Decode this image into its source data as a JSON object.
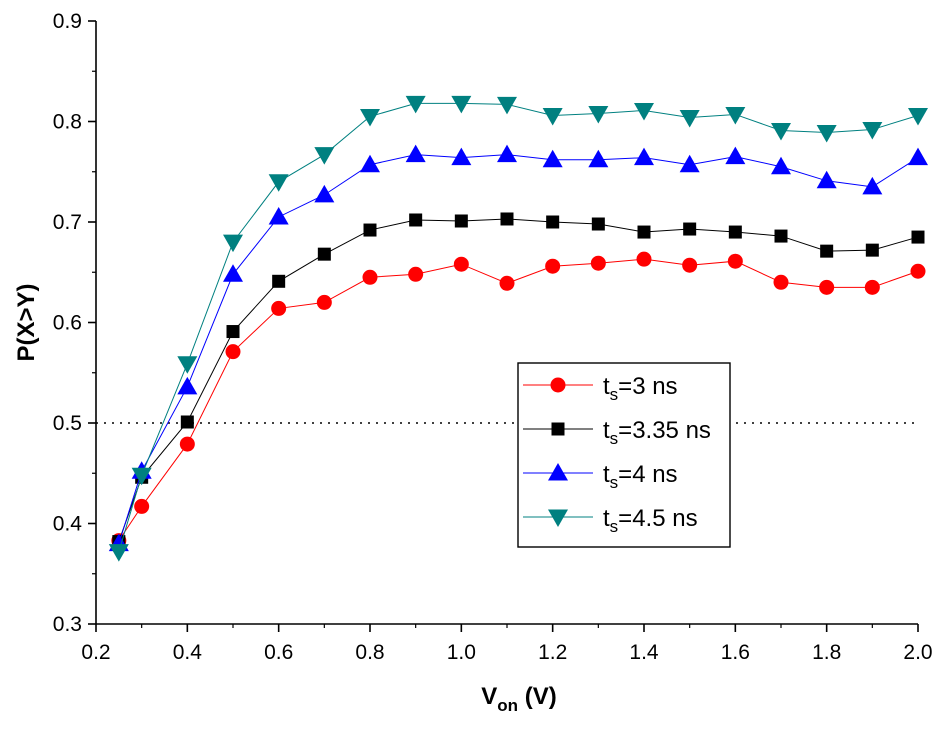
{
  "chart_data": {
    "type": "line",
    "title": "",
    "xlabel": {
      "main": "V",
      "sub": "on",
      "unit": " (V)"
    },
    "ylabel": "P(X>Y)",
    "xlim": [
      0.2,
      2.0
    ],
    "ylim": [
      0.3,
      0.9
    ],
    "xticks": [
      "0.2",
      "0.4",
      "0.6",
      "0.8",
      "1.0",
      "1.2",
      "1.4",
      "1.6",
      "1.8",
      "2.0"
    ],
    "yticks": [
      "0.3",
      "0.4",
      "0.5",
      "0.6",
      "0.7",
      "0.8",
      "0.9"
    ],
    "reference_line": {
      "y": 0.5,
      "style": "dotted",
      "color": "#000000"
    },
    "legend_position": "center-right",
    "x": [
      0.25,
      0.3,
      0.4,
      0.5,
      0.6,
      0.7,
      0.8,
      0.9,
      1.0,
      1.1,
      1.2,
      1.3,
      1.4,
      1.5,
      1.6,
      1.7,
      1.8,
      1.9,
      2.0
    ],
    "series": [
      {
        "key": "s3",
        "legend": {
          "main": "t",
          "sub": "s",
          "rest": "=3 ns"
        },
        "marker": "circle",
        "color": "#ff0000",
        "line_color": "#ff0000",
        "values": [
          0.383,
          0.417,
          0.479,
          0.571,
          0.614,
          0.62,
          0.645,
          0.648,
          0.658,
          0.639,
          0.656,
          0.659,
          0.663,
          0.657,
          0.661,
          0.64,
          0.635,
          0.635,
          0.651
        ]
      },
      {
        "key": "s335",
        "legend": {
          "main": "t",
          "sub": "s",
          "rest": "=3.35 ns"
        },
        "marker": "square",
        "color": "#000000",
        "line_color": "#000000",
        "values": [
          0.382,
          0.446,
          0.501,
          0.591,
          0.641,
          0.668,
          0.692,
          0.702,
          0.701,
          0.703,
          0.7,
          0.698,
          0.69,
          0.693,
          0.69,
          0.686,
          0.671,
          0.672,
          0.685
        ]
      },
      {
        "key": "s4",
        "legend": {
          "main": "t",
          "sub": "s",
          "rest": "=4 ns"
        },
        "marker": "triangle-up",
        "color": "#0000ff",
        "line_color": "#0000ff",
        "values": [
          0.38,
          0.452,
          0.536,
          0.648,
          0.705,
          0.727,
          0.757,
          0.767,
          0.764,
          0.767,
          0.762,
          0.762,
          0.764,
          0.757,
          0.765,
          0.755,
          0.741,
          0.735,
          0.764
        ]
      },
      {
        "key": "s45",
        "legend": {
          "main": "t",
          "sub": "s",
          "rest": "=4.5 ns"
        },
        "marker": "triangle-down",
        "color": "#008080",
        "line_color": "#008080",
        "values": [
          0.372,
          0.448,
          0.559,
          0.68,
          0.74,
          0.767,
          0.805,
          0.818,
          0.818,
          0.817,
          0.806,
          0.808,
          0.811,
          0.804,
          0.807,
          0.791,
          0.789,
          0.792,
          0.806
        ]
      }
    ]
  }
}
